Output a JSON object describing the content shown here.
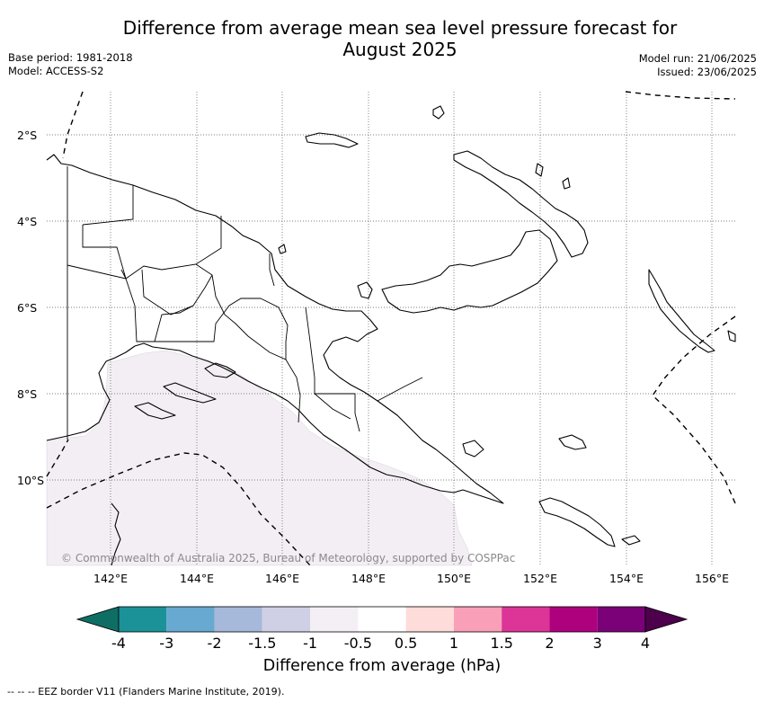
{
  "header": {
    "title_line1": "Difference from average mean sea level pressure forecast for",
    "title_line2": "August 2025",
    "base_period": "Base period: 1981-2018",
    "model": "Model: ACCESS-S2",
    "model_run": "Model run: 21/06/2025",
    "issued": "Issued: 23/06/2025"
  },
  "map": {
    "lat_labels": [
      "2°S",
      "4°S",
      "6°S",
      "8°S",
      "10°S"
    ],
    "lon_labels": [
      "142°E",
      "144°E",
      "146°E",
      "148°E",
      "150°E",
      "152°E",
      "154°E",
      "156°E"
    ],
    "shaded_anomaly_class": "-1 to -0.5",
    "shaded_color": "#f3eef4",
    "copyright": "© Commonwealth of Australia 2025, Bureau of Meteorology, supported by COSPPac"
  },
  "colorbar": {
    "label": "Difference from average (hPa)",
    "tick_labels": [
      "-4",
      "-3",
      "-2",
      "-1.5",
      "-1",
      "-0.5",
      "0.5",
      "1",
      "1.5",
      "2",
      "3",
      "4"
    ],
    "colors": [
      "#0f6e64",
      "#1b9198",
      "#67a9d0",
      "#a6b9da",
      "#cfd0e5",
      "#f3eff5",
      "#ffffff",
      "#fedcd9",
      "#f9a0b8",
      "#dd3497",
      "#ae017e",
      "#7a0177",
      "#4d004b"
    ]
  },
  "footnote": "--  --  -- EEZ border V11 (Flanders Marine Institute, 2019)."
}
